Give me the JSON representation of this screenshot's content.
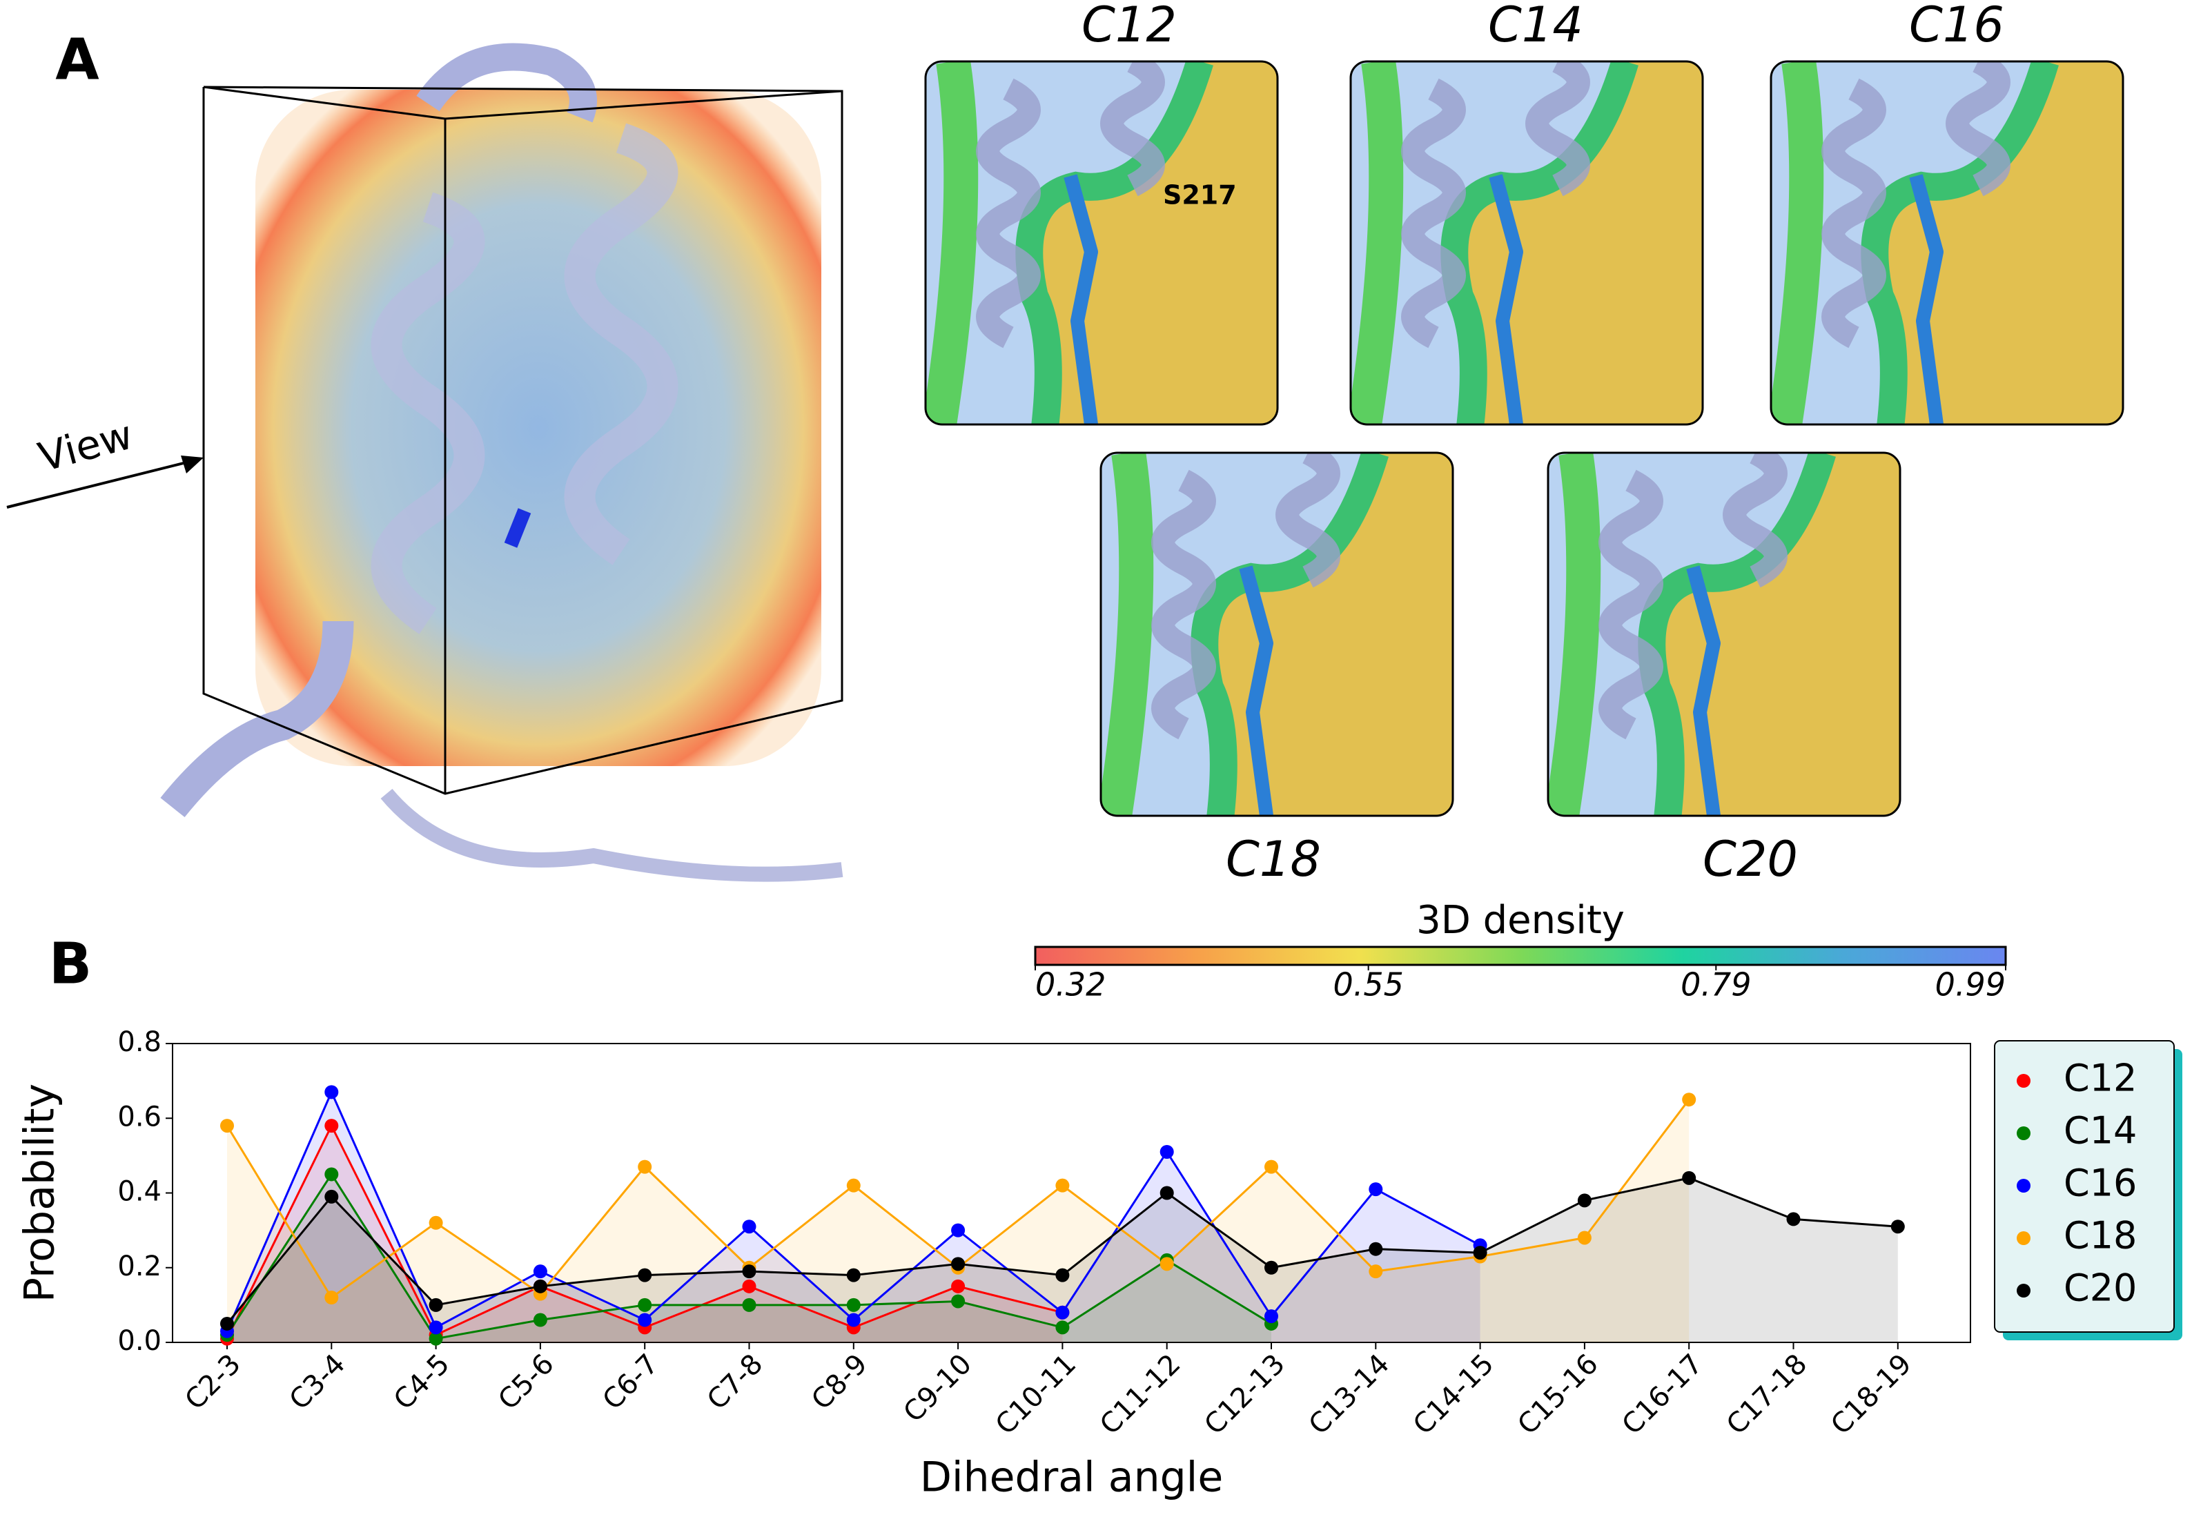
{
  "panel_labels": [
    "A",
    "B"
  ],
  "view_label": "View",
  "annotation": "S217",
  "insets": [
    {
      "label": "C12"
    },
    {
      "label": "C14"
    },
    {
      "label": "C16"
    },
    {
      "label": "C18"
    },
    {
      "label": "C20"
    }
  ],
  "colorbar": {
    "title": "3D density",
    "lim": [
      0.32,
      0.99
    ],
    "ticks": [
      0.32,
      0.55,
      0.79,
      0.99
    ],
    "colors": [
      "#f25f5f",
      "#f7a04a",
      "#f2e04e",
      "#7ed957",
      "#1fd3a0",
      "#4aa8d8",
      "#6a86f0"
    ]
  },
  "chart_data": {
    "type": "line",
    "xlabel": "Dihedral angle",
    "ylabel": "Probability",
    "categories": [
      "C2-3",
      "C3-4",
      "C4-5",
      "C5-6",
      "C6-7",
      "C7-8",
      "C8-9",
      "C9-10",
      "C10-11",
      "C11-12",
      "C12-13",
      "C13-14",
      "C14-15",
      "C15-16",
      "C16-17",
      "C17-18",
      "C18-19"
    ],
    "ylim": [
      0,
      0.8
    ],
    "yticks": [
      {
        "value": 0,
        "label": "0.0"
      },
      {
        "value": 0.2,
        "label": "0.2"
      },
      {
        "value": 0.4,
        "label": "0.4"
      },
      {
        "value": 0.6,
        "label": "0.6"
      },
      {
        "value": 0.8,
        "label": "0.8"
      }
    ],
    "fill_under": true,
    "legend": "outside right",
    "series": [
      {
        "name": "C12",
        "color": "#ff0000",
        "values": [
          0.01,
          0.58,
          0.02,
          0.15,
          0.04,
          0.15,
          0.04,
          0.15,
          0.08,
          null,
          null,
          null,
          null,
          null,
          null,
          null,
          null
        ]
      },
      {
        "name": "C14",
        "color": "#008000",
        "values": [
          0.02,
          0.45,
          0.01,
          0.06,
          0.1,
          0.1,
          0.1,
          0.11,
          0.04,
          0.22,
          0.05,
          null,
          null,
          null,
          null,
          null,
          null
        ]
      },
      {
        "name": "C16",
        "color": "#0000ff",
        "values": [
          0.03,
          0.67,
          0.04,
          0.19,
          0.06,
          0.31,
          0.06,
          0.3,
          0.08,
          0.51,
          0.07,
          0.41,
          0.26,
          null,
          null,
          null,
          null
        ]
      },
      {
        "name": "C18",
        "color": "#ffa500",
        "values": [
          0.58,
          0.12,
          0.32,
          0.13,
          0.47,
          0.2,
          0.42,
          0.2,
          0.42,
          0.21,
          0.47,
          0.19,
          0.23,
          0.28,
          0.65,
          null,
          null
        ]
      },
      {
        "name": "C20",
        "color": "#000000",
        "values": [
          0.05,
          0.39,
          0.1,
          0.15,
          0.18,
          0.19,
          0.18,
          0.21,
          0.18,
          0.4,
          0.2,
          0.25,
          0.24,
          0.38,
          0.44,
          0.33,
          0.31
        ]
      }
    ]
  }
}
